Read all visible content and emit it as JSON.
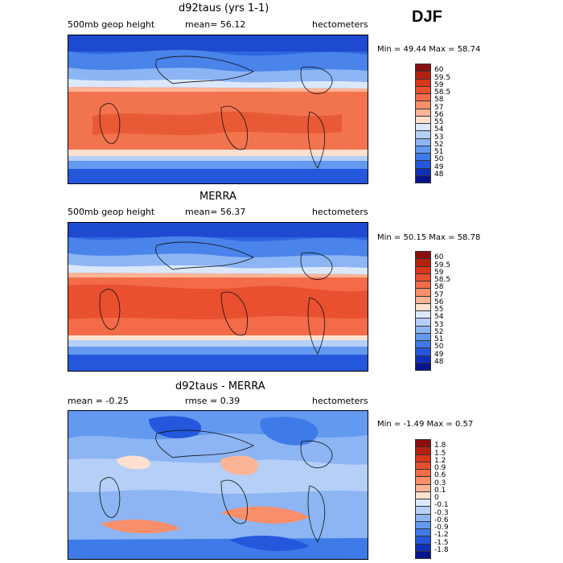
{
  "season": "DJF",
  "panels": [
    {
      "title": "d92taus (yrs 1-1)",
      "left_label": "500mb geop height",
      "mid_label": "mean=  56.12",
      "units": "hectometers",
      "minmax": "Min =  49.44 Max =  58.74",
      "legend_labels": [
        "60",
        "59.5",
        "59",
        "58.5",
        "58",
        "57",
        "56",
        "55",
        "54",
        "53",
        "52",
        "51",
        "50",
        "49",
        "48"
      ],
      "legend_colors": [
        "#8b0f0f",
        "#b3200f",
        "#d9361a",
        "#e8502f",
        "#f36b48",
        "#f98e6b",
        "#fcb496",
        "#fde0cf",
        "#dbe8fb",
        "#b5cff7",
        "#8db5f4",
        "#6399ef",
        "#3e7be8",
        "#2457dc",
        "#102fb8",
        "#07158c"
      ]
    },
    {
      "title": "MERRA",
      "left_label": "500mb geop height",
      "mid_label": "mean=  56.37",
      "units": "hectometers",
      "minmax": "Min =  50.15 Max =  58.78",
      "legend_labels": [
        "60",
        "59.5",
        "59",
        "58.5",
        "58",
        "57",
        "56",
        "55",
        "54",
        "53",
        "52",
        "51",
        "50",
        "49",
        "48"
      ],
      "legend_colors": [
        "#8b0f0f",
        "#b3200f",
        "#d9361a",
        "#e8502f",
        "#f36b48",
        "#f98e6b",
        "#fcb496",
        "#fde0cf",
        "#dbe8fb",
        "#b5cff7",
        "#8db5f4",
        "#6399ef",
        "#3e7be8",
        "#2457dc",
        "#102fb8",
        "#07158c"
      ]
    },
    {
      "title": "d92taus - MERRA",
      "left_label": "mean =   -0.25",
      "mid_label": "rmse =    0.39",
      "units": "hectometers",
      "minmax": "Min =  -1.49 Max =    0.57",
      "legend_labels": [
        "1.8",
        "1.5",
        "1.2",
        "0.9",
        "0.6",
        "0.3",
        "0.1",
        "0",
        "-0.1",
        "-0.3",
        "-0.6",
        "-0.9",
        "-1.2",
        "-1.5",
        "-1.8"
      ],
      "legend_colors": [
        "#8b0f0f",
        "#b3200f",
        "#d9361a",
        "#e8502f",
        "#f36b48",
        "#f98e6b",
        "#fcb496",
        "#fde0cf",
        "#dbe8fb",
        "#b5cff7",
        "#8db5f4",
        "#6399ef",
        "#3e7be8",
        "#2457dc",
        "#102fb8",
        "#07158c"
      ]
    }
  ]
}
